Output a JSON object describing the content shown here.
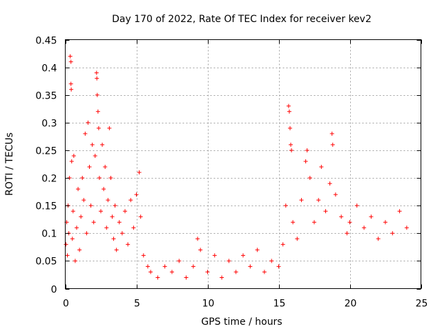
{
  "chart_data": {
    "type": "scatter",
    "title": "Day 170 of 2022, Rate Of TEC Index for receiver kev2",
    "xlabel": "GPS time / hours",
    "ylabel": "ROTI / TECUs",
    "xlim": [
      0,
      25
    ],
    "ylim": [
      0,
      0.45
    ],
    "x_ticks": [
      0,
      5,
      10,
      15,
      20,
      25
    ],
    "x_tick_labels": [
      "0",
      "5",
      "10",
      "15",
      "20",
      "25"
    ],
    "y_ticks": [
      0,
      0.05,
      0.1,
      0.15,
      0.2,
      0.25,
      0.3,
      0.35,
      0.4,
      0.45
    ],
    "y_tick_labels": [
      "0",
      "0.05",
      "0.1",
      "0.15",
      "0.2",
      "0.25",
      "0.3",
      "0.35",
      "0.4",
      "0.45"
    ],
    "grid": true,
    "marker": "+",
    "color": "#ff0000",
    "series": [
      {
        "name": "ROTI",
        "points": [
          [
            0.05,
            0.08
          ],
          [
            0.1,
            0.12
          ],
          [
            0.15,
            0.06
          ],
          [
            0.2,
            0.15
          ],
          [
            0.25,
            0.1
          ],
          [
            0.3,
            0.2
          ],
          [
            0.35,
            0.42
          ],
          [
            0.4,
            0.41
          ],
          [
            0.4,
            0.37
          ],
          [
            0.42,
            0.36
          ],
          [
            0.45,
            0.23
          ],
          [
            0.5,
            0.09
          ],
          [
            0.55,
            0.14
          ],
          [
            0.6,
            0.24
          ],
          [
            0.7,
            0.05
          ],
          [
            0.8,
            0.11
          ],
          [
            0.9,
            0.18
          ],
          [
            1.0,
            0.07
          ],
          [
            1.1,
            0.13
          ],
          [
            1.2,
            0.2
          ],
          [
            1.3,
            0.16
          ],
          [
            1.4,
            0.28
          ],
          [
            1.5,
            0.1
          ],
          [
            1.6,
            0.3
          ],
          [
            1.7,
            0.22
          ],
          [
            1.8,
            0.15
          ],
          [
            1.9,
            0.26
          ],
          [
            2.0,
            0.12
          ],
          [
            2.1,
            0.24
          ],
          [
            2.2,
            0.39
          ],
          [
            2.22,
            0.38
          ],
          [
            2.25,
            0.35
          ],
          [
            2.3,
            0.32
          ],
          [
            2.35,
            0.29
          ],
          [
            2.4,
            0.2
          ],
          [
            2.5,
            0.14
          ],
          [
            2.6,
            0.26
          ],
          [
            2.7,
            0.18
          ],
          [
            2.8,
            0.22
          ],
          [
            2.9,
            0.11
          ],
          [
            3.0,
            0.16
          ],
          [
            3.1,
            0.29
          ],
          [
            3.2,
            0.2
          ],
          [
            3.3,
            0.13
          ],
          [
            3.4,
            0.09
          ],
          [
            3.5,
            0.15
          ],
          [
            3.6,
            0.07
          ],
          [
            3.8,
            0.12
          ],
          [
            4.0,
            0.1
          ],
          [
            4.2,
            0.14
          ],
          [
            4.4,
            0.08
          ],
          [
            4.6,
            0.16
          ],
          [
            4.8,
            0.11
          ],
          [
            5.0,
            0.17
          ],
          [
            5.2,
            0.21
          ],
          [
            5.3,
            0.13
          ],
          [
            5.5,
            0.06
          ],
          [
            5.8,
            0.04
          ],
          [
            6.0,
            0.03
          ],
          [
            6.5,
            0.02
          ],
          [
            7.0,
            0.04
          ],
          [
            7.5,
            0.03
          ],
          [
            8.0,
            0.05
          ],
          [
            8.5,
            0.02
          ],
          [
            9.0,
            0.04
          ],
          [
            9.3,
            0.09
          ],
          [
            9.5,
            0.07
          ],
          [
            10.0,
            0.03
          ],
          [
            10.5,
            0.06
          ],
          [
            11.0,
            0.02
          ],
          [
            11.5,
            0.05
          ],
          [
            12.0,
            0.03
          ],
          [
            12.5,
            0.06
          ],
          [
            13.0,
            0.04
          ],
          [
            13.5,
            0.07
          ],
          [
            14.0,
            0.03
          ],
          [
            14.5,
            0.05
          ],
          [
            15.0,
            0.04
          ],
          [
            15.3,
            0.08
          ],
          [
            15.5,
            0.15
          ],
          [
            15.7,
            0.33
          ],
          [
            15.75,
            0.32
          ],
          [
            15.8,
            0.29
          ],
          [
            15.85,
            0.26
          ],
          [
            15.9,
            0.25
          ],
          [
            16.0,
            0.12
          ],
          [
            16.3,
            0.09
          ],
          [
            16.6,
            0.16
          ],
          [
            16.9,
            0.23
          ],
          [
            17.0,
            0.25
          ],
          [
            17.2,
            0.2
          ],
          [
            17.5,
            0.12
          ],
          [
            17.8,
            0.16
          ],
          [
            18.0,
            0.22
          ],
          [
            18.3,
            0.14
          ],
          [
            18.6,
            0.19
          ],
          [
            18.75,
            0.28
          ],
          [
            18.8,
            0.26
          ],
          [
            19.0,
            0.17
          ],
          [
            19.4,
            0.13
          ],
          [
            19.8,
            0.1
          ],
          [
            20.0,
            0.12
          ],
          [
            20.5,
            0.15
          ],
          [
            21.0,
            0.11
          ],
          [
            21.5,
            0.13
          ],
          [
            22.0,
            0.09
          ],
          [
            22.5,
            0.12
          ],
          [
            23.0,
            0.1
          ],
          [
            23.5,
            0.14
          ],
          [
            24.0,
            0.11
          ]
        ]
      }
    ]
  }
}
